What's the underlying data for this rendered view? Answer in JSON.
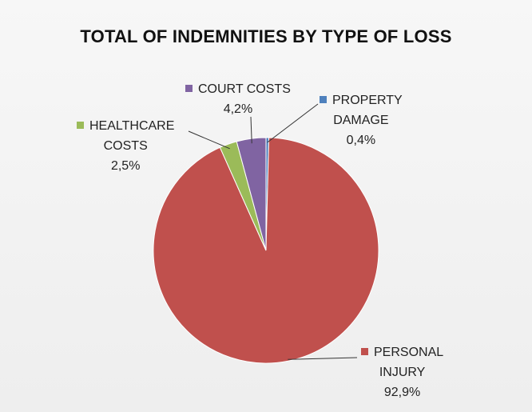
{
  "chart_data": {
    "type": "pie",
    "title": "TOTAL OF INDEMNITIES BY TYPE OF LOSS",
    "slices": [
      {
        "label_lines": [
          "PROPERTY",
          "DAMAGE"
        ],
        "value": 0.4,
        "value_label": "0,4%",
        "color": "#4f81bd"
      },
      {
        "label_lines": [
          "PERSONAL",
          "INJURY"
        ],
        "value": 92.9,
        "value_label": "92,9%",
        "color": "#c0504d"
      },
      {
        "label_lines": [
          "HEALTHCARE",
          "COSTS"
        ],
        "value": 2.5,
        "value_label": "2,5%",
        "color": "#9bbb59"
      },
      {
        "label_lines": [
          "COURT COSTS"
        ],
        "value": 4.2,
        "value_label": "4,2%",
        "color": "#8064a2"
      }
    ]
  }
}
